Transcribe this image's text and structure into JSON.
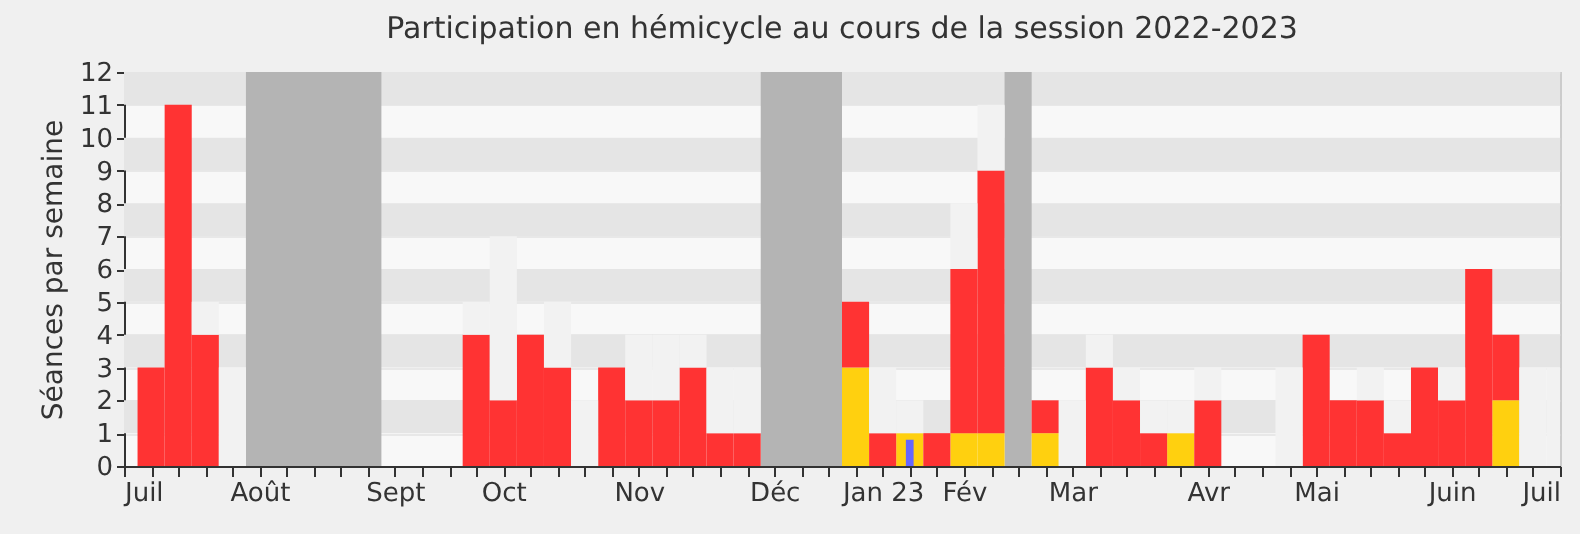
{
  "chart_data": {
    "type": "bar",
    "title": "Participation en hémicycle au cours de la session 2022-2023",
    "ylabel": "Séances par semaine",
    "x": [
      "2022-07-08",
      "2022-07-15",
      "2022-07-22",
      "2022-07-29",
      "2022-08-05",
      "2022-08-12",
      "2022-08-19",
      "2022-08-26",
      "2022-09-02",
      "2022-09-09",
      "2022-09-16",
      "2022-09-23",
      "2022-09-30",
      "2022-10-07",
      "2022-10-14",
      "2022-10-21",
      "2022-10-28",
      "2022-11-04",
      "2022-11-11",
      "2022-11-18",
      "2022-11-25",
      "2022-12-02",
      "2022-12-09",
      "2022-12-16",
      "2022-12-23",
      "2022-12-30",
      "2023-01-06",
      "2023-01-13",
      "2023-01-20",
      "2023-01-27",
      "2023-02-03",
      "2023-02-10",
      "2023-02-17",
      "2023-02-24",
      "2023-03-03",
      "2023-03-10",
      "2023-03-17",
      "2023-03-24",
      "2023-03-31",
      "2023-04-07",
      "2023-04-14",
      "2023-04-21",
      "2023-04-28",
      "2023-05-05",
      "2023-05-12",
      "2023-05-19",
      "2023-05-26",
      "2023-06-02",
      "2023-06-09",
      "2023-06-16",
      "2023-06-23",
      "2023-06-30",
      "2023-07-07"
    ],
    "series": [
      {
        "color": "#ffd00f",
        "values": [
          null,
          null,
          null,
          null,
          null,
          null,
          null,
          null,
          null,
          null,
          null,
          null,
          null,
          null,
          null,
          null,
          null,
          null,
          null,
          null,
          null,
          null,
          null,
          null,
          null,
          null,
          3,
          null,
          1,
          null,
          1,
          1,
          null,
          1,
          null,
          null,
          null,
          null,
          1,
          null,
          null,
          null,
          null,
          null,
          null,
          null,
          null,
          null,
          null,
          null,
          2,
          null,
          null
        ]
      },
      {
        "color": "#ff3333",
        "values": [
          3,
          11,
          4,
          null,
          null,
          null,
          null,
          null,
          null,
          null,
          null,
          null,
          4,
          2,
          4,
          3,
          null,
          3,
          2,
          2,
          3,
          1,
          1,
          null,
          null,
          null,
          2,
          1,
          null,
          1,
          5,
          8,
          null,
          1,
          null,
          3,
          2,
          1,
          null,
          2,
          null,
          null,
          null,
          4,
          2,
          2,
          1,
          3,
          2,
          6,
          2,
          null,
          null
        ],
        "base": [
          0,
          0,
          0,
          null,
          null,
          null,
          null,
          null,
          null,
          null,
          null,
          null,
          0,
          0,
          0,
          0,
          null,
          0,
          0,
          0,
          0,
          0,
          0,
          null,
          null,
          null,
          3,
          0,
          null,
          0,
          1,
          1,
          null,
          1,
          null,
          0,
          0,
          0,
          null,
          0,
          null,
          null,
          null,
          0,
          0,
          0,
          0,
          0,
          0,
          0,
          2,
          null,
          null
        ]
      },
      {
        "color": "#f2f2f2",
        "values": [
          null,
          null,
          1,
          3,
          null,
          null,
          null,
          null,
          null,
          null,
          null,
          null,
          1,
          5,
          null,
          2,
          2,
          null,
          2,
          2,
          1,
          2,
          2,
          null,
          null,
          null,
          null,
          2,
          1,
          null,
          2,
          2,
          null,
          null,
          2,
          1,
          1,
          1,
          1,
          1,
          null,
          null,
          3,
          null,
          null,
          1,
          1,
          null,
          1,
          null,
          null,
          3,
          3
        ],
        "base": [
          null,
          null,
          4,
          0,
          null,
          null,
          null,
          null,
          null,
          null,
          null,
          null,
          4,
          2,
          null,
          3,
          0,
          null,
          2,
          2,
          3,
          1,
          1,
          null,
          null,
          null,
          null,
          1,
          1,
          null,
          6,
          9,
          null,
          null,
          0,
          3,
          2,
          1,
          1,
          2,
          null,
          null,
          0,
          null,
          null,
          2,
          1,
          null,
          2,
          null,
          null,
          0,
          0
        ]
      },
      {
        "color": "#6666ff",
        "values": [
          null,
          null,
          null,
          null,
          null,
          null,
          null,
          null,
          null,
          null,
          null,
          null,
          null,
          null,
          null,
          null,
          null,
          null,
          null,
          null,
          null,
          null,
          null,
          null,
          null,
          null,
          null,
          null,
          0.8,
          null,
          null,
          null,
          null,
          null,
          null,
          null,
          null,
          null,
          null,
          null,
          null,
          null,
          null,
          null,
          null,
          null,
          null,
          null,
          null,
          null,
          null,
          null,
          null
        ],
        "base": [
          null,
          null,
          null,
          null,
          null,
          null,
          null,
          null,
          null,
          null,
          null,
          null,
          null,
          null,
          null,
          null,
          null,
          null,
          null,
          null,
          null,
          null,
          null,
          null,
          null,
          null,
          null,
          null,
          0,
          null,
          null,
          null,
          null,
          null,
          null,
          null,
          null,
          null,
          null,
          null,
          null,
          null,
          null,
          null,
          null,
          null,
          null,
          null,
          null,
          null,
          null,
          null,
          null
        ]
      }
    ],
    "xlim": [
      "2022-07-01",
      "2023-07-07"
    ],
    "xticks": [
      {
        "value": "2022-07-01",
        "label": "Juil"
      },
      {
        "value": "2022-07-08",
        "label": null
      },
      {
        "value": "2022-07-15",
        "label": null
      },
      {
        "value": "2022-07-22",
        "label": null
      },
      {
        "value": "2022-07-29",
        "label": null
      },
      {
        "value": "2022-08-05",
        "label": "Août"
      },
      {
        "value": "2022-08-12",
        "label": null
      },
      {
        "value": "2022-08-19",
        "label": null
      },
      {
        "value": "2022-08-26",
        "label": null
      },
      {
        "value": "2022-09-02",
        "label": null
      },
      {
        "value": "2022-09-09",
        "label": "Sept"
      },
      {
        "value": "2022-09-16",
        "label": null
      },
      {
        "value": "2022-09-23",
        "label": null
      },
      {
        "value": "2022-09-30",
        "label": null
      },
      {
        "value": "2022-10-07",
        "label": "Oct"
      },
      {
        "value": "2022-10-14",
        "label": null
      },
      {
        "value": "2022-10-21",
        "label": null
      },
      {
        "value": "2022-10-28",
        "label": null
      },
      {
        "value": "2022-11-04",
        "label": null
      },
      {
        "value": "2022-11-11",
        "label": "Nov"
      },
      {
        "value": "2022-11-18",
        "label": null
      },
      {
        "value": "2022-11-25",
        "label": null
      },
      {
        "value": "2022-12-02",
        "label": null
      },
      {
        "value": "2022-12-09",
        "label": null
      },
      {
        "value": "2022-12-16",
        "label": "Déc"
      },
      {
        "value": "2022-12-23",
        "label": null
      },
      {
        "value": "2022-12-30",
        "label": null
      },
      {
        "value": "2023-01-06",
        "label": null
      },
      {
        "value": "2023-01-13",
        "label": "Jan 23"
      },
      {
        "value": "2023-01-20",
        "label": null
      },
      {
        "value": "2023-01-27",
        "label": null
      },
      {
        "value": "2023-02-03",
        "label": "Fév"
      },
      {
        "value": "2023-02-10",
        "label": null
      },
      {
        "value": "2023-02-17",
        "label": null
      },
      {
        "value": "2023-02-24",
        "label": null
      },
      {
        "value": "2023-03-03",
        "label": "Mar"
      },
      {
        "value": "2023-03-10",
        "label": null
      },
      {
        "value": "2023-03-17",
        "label": null
      },
      {
        "value": "2023-03-24",
        "label": null
      },
      {
        "value": "2023-03-31",
        "label": null
      },
      {
        "value": "2023-04-07",
        "label": "Avr"
      },
      {
        "value": "2023-04-14",
        "label": null
      },
      {
        "value": "2023-04-21",
        "label": null
      },
      {
        "value": "2023-04-28",
        "label": null
      },
      {
        "value": "2023-05-05",
        "label": "Mai"
      },
      {
        "value": "2023-05-12",
        "label": null
      },
      {
        "value": "2023-05-19",
        "label": null
      },
      {
        "value": "2023-05-26",
        "label": null
      },
      {
        "value": "2023-06-02",
        "label": null
      },
      {
        "value": "2023-06-09",
        "label": "Juin"
      },
      {
        "value": "2023-06-16",
        "label": null
      },
      {
        "value": "2023-06-23",
        "label": null
      },
      {
        "value": "2023-06-30",
        "label": null
      },
      {
        "value": "2023-07-07",
        "label": "Juil"
      }
    ],
    "ylim": [
      0,
      12
    ],
    "yticks": [
      0,
      1,
      2,
      3,
      4,
      5,
      6,
      7,
      8,
      9,
      10,
      11,
      12
    ],
    "grid": "y",
    "bands": [
      {
        "axis": "x",
        "from": "2022-08-01T12:00",
        "to": "2022-09-05T12:00",
        "color": "#b4b4b4"
      },
      {
        "axis": "x",
        "from": "2022-12-12T12:00",
        "to": "2023-01-02T12:00",
        "color": "#b4b4b4"
      },
      {
        "axis": "x",
        "from": "2023-02-13T12:00",
        "to": "2023-02-20T12:00",
        "color": "#b4b4b4"
      }
    ]
  }
}
